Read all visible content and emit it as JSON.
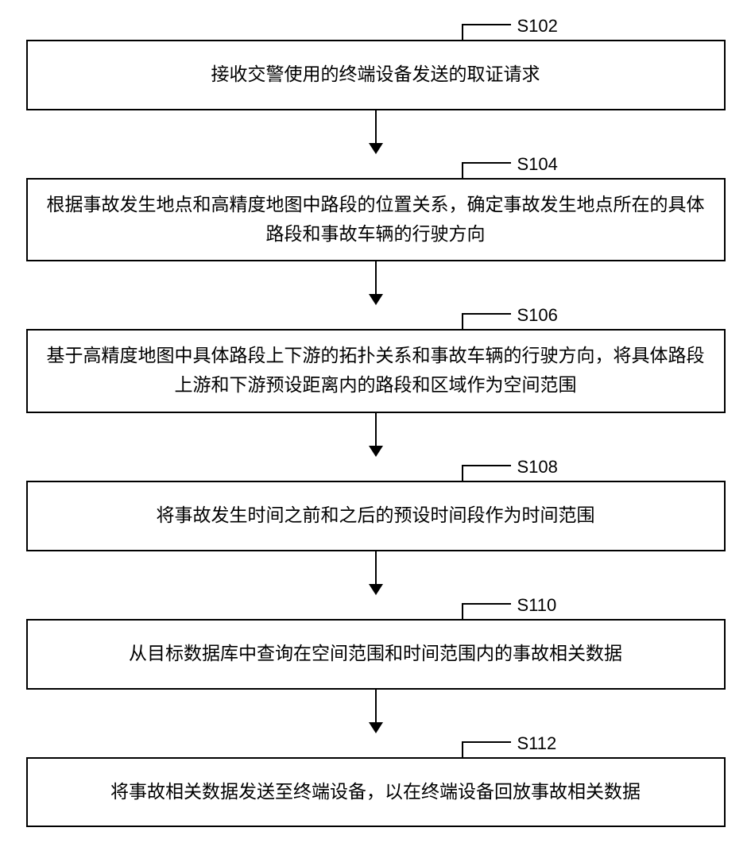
{
  "flowchart": {
    "type": "flowchart",
    "background_color": "#ffffff",
    "box_border_color": "#000000",
    "box_border_width": 2,
    "text_color": "#000000",
    "font_size": 23,
    "label_font_size": 22,
    "arrow_color": "#000000",
    "steps": [
      {
        "id": "S102",
        "text": "接收交警使用的终端设备发送的取证请求",
        "lines": 1
      },
      {
        "id": "S104",
        "text": "根据事故发生地点和高精度地图中路段的位置关系，确定事故发生地点所在的具体路段和事故车辆的行驶方向",
        "lines": 2
      },
      {
        "id": "S106",
        "text": "基于高精度地图中具体路段上下游的拓扑关系和事故车辆的行驶方向，将具体路段上游和下游预设距离内的路段和区域作为空间范围",
        "lines": 2
      },
      {
        "id": "S108",
        "text": "将事故发生时间之前和之后的预设时间段作为时间范围",
        "lines": 1
      },
      {
        "id": "S110",
        "text": "从目标数据库中查询在空间范围和时间范围内的事故相关数据",
        "lines": 1
      },
      {
        "id": "S112",
        "text": "将事故相关数据发送至终端设备，以在终端设备回放事故相关数据",
        "lines": 1
      }
    ]
  }
}
